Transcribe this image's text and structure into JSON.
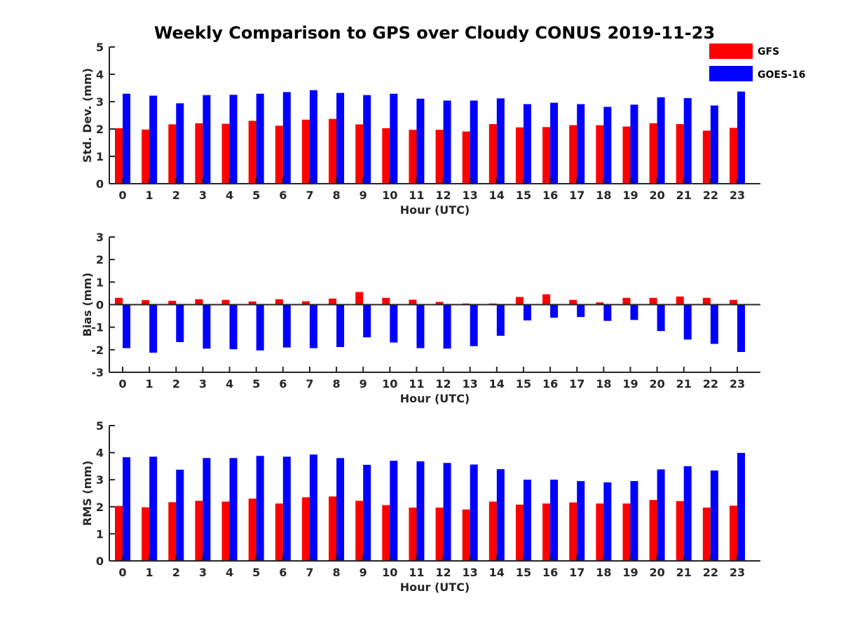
{
  "title": "Weekly Comparison to GPS over Cloudy CONUS 2019-11-23",
  "legend": [
    {
      "name": "GFS",
      "color": "#ff0000"
    },
    {
      "name": "GOES-16",
      "color": "#0000ff"
    }
  ],
  "chart_data": [
    {
      "type": "bar",
      "xlabel": "Hour (UTC)",
      "ylabel": "Std. Dev. (mm)",
      "ylim": [
        0,
        5
      ],
      "yticks": [
        0,
        1,
        2,
        3,
        4,
        5
      ],
      "categories": [
        "0",
        "1",
        "2",
        "3",
        "4",
        "5",
        "6",
        "7",
        "8",
        "9",
        "10",
        "11",
        "12",
        "13",
        "14",
        "15",
        "16",
        "17",
        "18",
        "19",
        "20",
        "21",
        "22",
        "23"
      ],
      "legend_position": "top-right",
      "series": [
        {
          "name": "GFS",
          "color": "#ff0000",
          "values": [
            2.03,
            1.98,
            2.17,
            2.21,
            2.19,
            2.3,
            2.12,
            2.34,
            2.37,
            2.17,
            2.03,
            1.97,
            1.97,
            1.91,
            2.18,
            2.06,
            2.07,
            2.14,
            2.14,
            2.09,
            2.21,
            2.18,
            1.94,
            2.04
          ]
        },
        {
          "name": "GOES-16",
          "color": "#0000ff",
          "values": [
            3.29,
            3.22,
            2.94,
            3.24,
            3.25,
            3.29,
            3.35,
            3.42,
            3.32,
            3.24,
            3.29,
            3.11,
            3.04,
            3.04,
            3.12,
            2.91,
            2.96,
            2.91,
            2.81,
            2.89,
            3.16,
            3.13,
            2.86,
            3.37
          ]
        }
      ]
    },
    {
      "type": "bar",
      "xlabel": "Hour (UTC)",
      "ylabel": "Bias (mm)",
      "ylim": [
        -3,
        3
      ],
      "yticks": [
        -3,
        -2,
        -1,
        0,
        1,
        2,
        3
      ],
      "categories": [
        "0",
        "1",
        "2",
        "3",
        "4",
        "5",
        "6",
        "7",
        "8",
        "9",
        "10",
        "11",
        "12",
        "13",
        "14",
        "15",
        "16",
        "17",
        "18",
        "19",
        "20",
        "21",
        "22",
        "23"
      ],
      "series": [
        {
          "name": "GFS",
          "color": "#ff0000",
          "values": [
            0.3,
            0.2,
            0.17,
            0.24,
            0.21,
            0.14,
            0.24,
            0.15,
            0.27,
            0.56,
            0.3,
            0.22,
            0.12,
            0.05,
            0.05,
            0.34,
            0.46,
            0.21,
            0.1,
            0.3,
            0.3,
            0.36,
            0.3,
            0.21
          ]
        },
        {
          "name": "GOES-16",
          "color": "#0000ff",
          "values": [
            -1.93,
            -2.13,
            -1.66,
            -1.95,
            -1.98,
            -2.03,
            -1.9,
            -1.93,
            -1.88,
            -1.45,
            -1.68,
            -1.93,
            -1.95,
            -1.84,
            -1.38,
            -0.7,
            -0.58,
            -0.55,
            -0.72,
            -0.68,
            -1.17,
            -1.55,
            -1.74,
            -2.1
          ]
        }
      ]
    },
    {
      "type": "bar",
      "xlabel": "Hour (UTC)",
      "ylabel": "RMS (mm)",
      "ylim": [
        0,
        5
      ],
      "yticks": [
        0,
        1,
        2,
        3,
        4,
        5
      ],
      "categories": [
        "0",
        "1",
        "2",
        "3",
        "4",
        "5",
        "6",
        "7",
        "8",
        "9",
        "10",
        "11",
        "12",
        "13",
        "14",
        "15",
        "16",
        "17",
        "18",
        "19",
        "20",
        "21",
        "22",
        "23"
      ],
      "series": [
        {
          "name": "GFS",
          "color": "#ff0000",
          "values": [
            2.03,
            1.98,
            2.17,
            2.22,
            2.19,
            2.3,
            2.12,
            2.35,
            2.38,
            2.22,
            2.06,
            1.97,
            1.97,
            1.9,
            2.19,
            2.08,
            2.12,
            2.16,
            2.12,
            2.12,
            2.25,
            2.21,
            1.97,
            2.04
          ]
        },
        {
          "name": "GOES-16",
          "color": "#0000ff",
          "values": [
            3.83,
            3.85,
            3.37,
            3.8,
            3.8,
            3.88,
            3.85,
            3.93,
            3.8,
            3.55,
            3.7,
            3.68,
            3.62,
            3.56,
            3.39,
            3.0,
            3.0,
            2.95,
            2.9,
            2.95,
            3.38,
            3.5,
            3.34,
            3.99
          ]
        }
      ]
    }
  ]
}
